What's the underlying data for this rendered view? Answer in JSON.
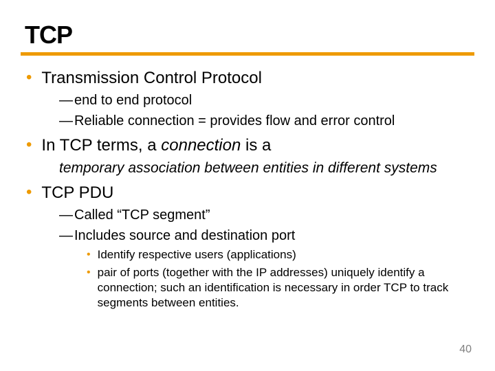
{
  "title": "TCP",
  "bullets": {
    "b1": "Transmission Control Protocol",
    "b1_d1": "end to end protocol",
    "b1_d2": "Reliable connection = provides flow and error control",
    "b2_pre": "In TCP terms, a ",
    "b2_italic": "connection",
    "b2_post": "  is a",
    "b2_desc": "temporary association between entities in different systems",
    "b3": "TCP PDU",
    "b3_d1": "Called “TCP segment”",
    "b3_d2": "Includes source and destination port",
    "b3_s1": "Identify respective users (applications)",
    "b3_s2": "pair of ports (together with the IP addresses) uniquely identify a connection; such an identification is necessary in order TCP to track segments between entities."
  },
  "pagenum": "40",
  "colors": {
    "accent": "#ee9a00"
  }
}
